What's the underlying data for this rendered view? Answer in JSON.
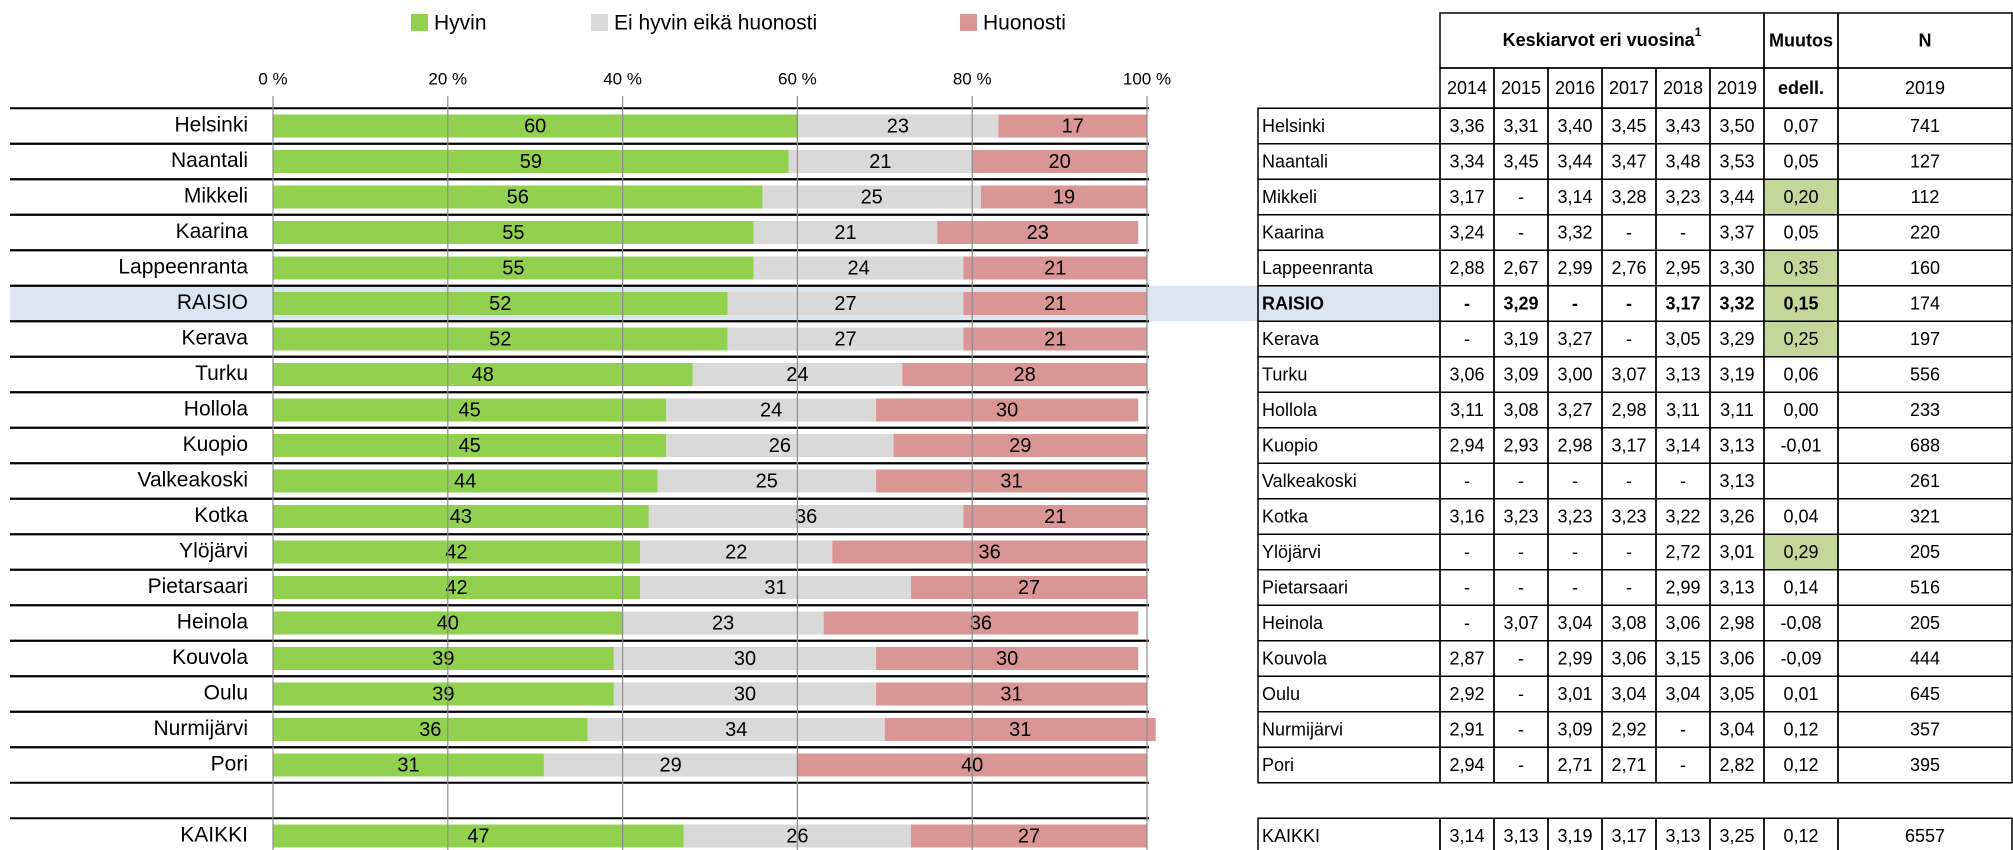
{
  "chart_data": {
    "type": "bar",
    "orientation": "horizontal",
    "stacked": true,
    "categories": [
      "Helsinki",
      "Naantali",
      "Mikkeli",
      "Kaarina",
      "Lappeenranta",
      "RAISIO",
      "Kerava",
      "Turku",
      "Hollola",
      "Kuopio",
      "Valkeakoski",
      "Kotka",
      "Ylöjärvi",
      "Pietarsaari",
      "Heinola",
      "Kouvola",
      "Oulu",
      "Nurmijärvi",
      "Pori",
      null,
      "KAIKKI"
    ],
    "series": [
      {
        "name": "Hyvin",
        "color": "#92d050",
        "values": [
          60,
          59,
          56,
          55,
          55,
          52,
          52,
          48,
          45,
          45,
          44,
          43,
          42,
          42,
          40,
          39,
          39,
          36,
          31,
          null,
          47
        ]
      },
      {
        "name": "Ei hyvin eikä huonosti",
        "color": "#d9d9d9",
        "values": [
          23,
          21,
          25,
          21,
          24,
          27,
          27,
          24,
          24,
          26,
          25,
          36,
          22,
          31,
          23,
          30,
          30,
          34,
          29,
          null,
          26
        ]
      },
      {
        "name": "Huonosti",
        "color": "#da9694",
        "values": [
          17,
          20,
          19,
          23,
          21,
          21,
          21,
          28,
          30,
          29,
          31,
          21,
          36,
          27,
          36,
          30,
          31,
          31,
          40,
          null,
          27
        ]
      }
    ],
    "xlim": [
      0,
      100
    ],
    "xticks": [
      {
        "value": 0,
        "label": "0 %"
      },
      {
        "value": 20,
        "label": "20 %"
      },
      {
        "value": 40,
        "label": "40 %"
      },
      {
        "value": 60,
        "label": "60 %"
      },
      {
        "value": 80,
        "label": "80 %"
      },
      {
        "value": 100,
        "label": "100 %"
      }
    ],
    "grid": true,
    "legend": "top"
  },
  "table": {
    "header": {
      "title": "Keskiarvot eri vuosina",
      "title_note": "1",
      "change": "Muutos",
      "change_sub": "edell.",
      "n": "N",
      "n_sub": "2019",
      "years": [
        "2014",
        "2015",
        "2016",
        "2017",
        "2018",
        "2019"
      ]
    },
    "highlighted_rows": [
      2,
      4,
      5,
      6,
      12
    ],
    "highlight_color": "#c4d79b",
    "bold_row": 5,
    "bold_row_color": "#dce6f1",
    "rows": [
      {
        "values": [
          "3,36",
          "3,31",
          "3,40",
          "3,45",
          "3,43",
          "3,50"
        ],
        "change": "0,07",
        "n": "741"
      },
      {
        "values": [
          "3,34",
          "3,45",
          "3,44",
          "3,47",
          "3,48",
          "3,53"
        ],
        "change": "0,05",
        "n": "127"
      },
      {
        "values": [
          "3,17",
          "-",
          "3,14",
          "3,28",
          "3,23",
          "3,44"
        ],
        "change": "0,20",
        "n": "112"
      },
      {
        "values": [
          "3,24",
          "-",
          "3,32",
          "-",
          "-",
          "3,37"
        ],
        "change": "0,05",
        "n": "220"
      },
      {
        "values": [
          "2,88",
          "2,67",
          "2,99",
          "2,76",
          "2,95",
          "3,30"
        ],
        "change": "0,35",
        "n": "160"
      },
      {
        "values": [
          "-",
          "3,29",
          "-",
          "-",
          "3,17",
          "3,32"
        ],
        "change": "0,15",
        "n": "174"
      },
      {
        "values": [
          "-",
          "3,19",
          "3,27",
          "-",
          "3,05",
          "3,29"
        ],
        "change": "0,25",
        "n": "197"
      },
      {
        "values": [
          "3,06",
          "3,09",
          "3,00",
          "3,07",
          "3,13",
          "3,19"
        ],
        "change": "0,06",
        "n": "556"
      },
      {
        "values": [
          "3,11",
          "3,08",
          "3,27",
          "2,98",
          "3,11",
          "3,11"
        ],
        "change": "0,00",
        "n": "233"
      },
      {
        "values": [
          "2,94",
          "2,93",
          "2,98",
          "3,17",
          "3,14",
          "3,13"
        ],
        "change": "-0,01",
        "n": "688"
      },
      {
        "values": [
          "-",
          "-",
          "-",
          "-",
          "-",
          "3,13"
        ],
        "change": null,
        "n": "261"
      },
      {
        "values": [
          "3,16",
          "3,23",
          "3,23",
          "3,23",
          "3,22",
          "3,26"
        ],
        "change": "0,04",
        "n": "321"
      },
      {
        "values": [
          "-",
          "-",
          "-",
          "-",
          "2,72",
          "3,01"
        ],
        "change": "0,29",
        "n": "205"
      },
      {
        "values": [
          "-",
          "-",
          "-",
          "-",
          "2,99",
          "3,13"
        ],
        "change": "0,14",
        "n": "516"
      },
      {
        "values": [
          "-",
          "3,07",
          "3,04",
          "3,08",
          "3,06",
          "2,98"
        ],
        "change": "-0,08",
        "n": "205"
      },
      {
        "values": [
          "2,87",
          "-",
          "2,99",
          "3,06",
          "3,15",
          "3,06"
        ],
        "change": "-0,09",
        "n": "444"
      },
      {
        "values": [
          "2,92",
          "-",
          "3,01",
          "3,04",
          "3,04",
          "3,05"
        ],
        "change": "0,01",
        "n": "645"
      },
      {
        "values": [
          "2,91",
          "-",
          "3,09",
          "2,92",
          "-",
          "3,04"
        ],
        "change": "0,12",
        "n": "357"
      },
      {
        "values": [
          "2,94",
          "-",
          "2,71",
          "2,71",
          "-",
          "2,82"
        ],
        "change": "0,12",
        "n": "395"
      },
      {
        "values": [
          "3,14",
          "3,13",
          "3,19",
          "3,17",
          "3,13",
          "3,25"
        ],
        "change": "0,12",
        "n": "6557"
      }
    ]
  }
}
